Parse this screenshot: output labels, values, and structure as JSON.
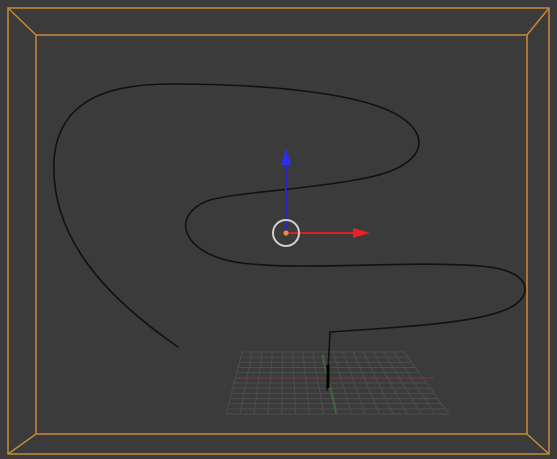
{
  "viewport": {
    "background": "#3b3b3b",
    "inner_panel_color": "#3d3d3d",
    "camera_frame_color": "#c8873a",
    "curve_color": "#111111",
    "grid_color": "#4f4f4f",
    "x_axis_color": "#d81f1f",
    "y_axis_color": "#1b6d1b",
    "z_axis_color": "#2525d0",
    "origin_color": "#e58d3d",
    "cursor_color": "#d0d0d0"
  },
  "widgets": {
    "camera_frame": "camera-passepartout-frame",
    "curve": "bezier-curve-path",
    "gizmo": "transform-gizmo",
    "grid": "floor-grid"
  }
}
